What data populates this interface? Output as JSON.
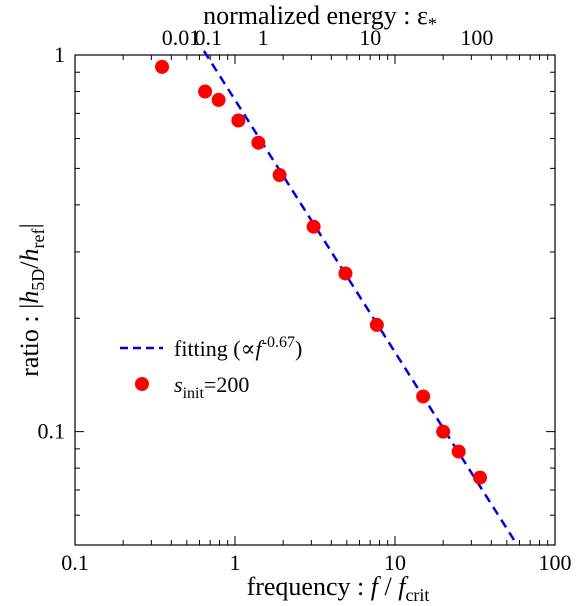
{
  "chart_data": {
    "type": "scatter",
    "x_axis": {
      "scale": "log",
      "range": [
        0.1,
        100
      ],
      "label_main": "frequency : ",
      "label_symbol": "f",
      "label_sep": " / ",
      "label_ref": "f",
      "label_ref_sub": "crit",
      "ticks": [
        {
          "value": 0.1,
          "label": "0.1"
        },
        {
          "value": 1,
          "label": "1"
        },
        {
          "value": 10,
          "label": "10"
        },
        {
          "value": 100,
          "label": "100"
        }
      ]
    },
    "top_axis": {
      "label": "normalized energy : ε",
      "label_sub": "*",
      "ticks": [
        {
          "f": 0.46,
          "label": "0.01"
        },
        {
          "f": 0.68,
          "label": "0.1"
        },
        {
          "f": 1.5,
          "label": "1"
        },
        {
          "f": 7.0,
          "label": "10"
        },
        {
          "f": 32.5,
          "label": "100"
        }
      ]
    },
    "y_axis": {
      "scale": "log",
      "range": [
        0.05,
        1
      ],
      "label_main": "ratio : |",
      "label_h1": "h",
      "label_h1_sub": "5D",
      "label_slash": "/",
      "label_h2": "h",
      "label_h2_sub": "ref",
      "label_end": "|",
      "ticks": [
        {
          "value": 0.1,
          "label": "0.1"
        },
        {
          "value": 1,
          "label": "1"
        }
      ]
    },
    "series": [
      {
        "name_main": "s",
        "name_sub": "init",
        "name_rest": "=200",
        "kind": "scatter",
        "color": "#ff0000",
        "x": [
          0.35,
          0.65,
          0.79,
          1.05,
          1.4,
          1.9,
          3.1,
          4.9,
          7.7,
          15.0,
          20.0,
          25.0,
          34.0
        ],
        "y": [
          0.93,
          0.8,
          0.76,
          0.67,
          0.585,
          0.48,
          0.35,
          0.263,
          0.192,
          0.124,
          0.1,
          0.0885,
          0.0755
        ]
      },
      {
        "name_main": "fitting (∝",
        "name_f": "f",
        "name_exp": "-0.67",
        "name_end": ")",
        "kind": "line",
        "style": "dashed",
        "color": "#0000e6",
        "exponent": -0.67,
        "coefficient": 0.76,
        "x_range": [
          0.64,
          58
        ]
      }
    ],
    "legend_position": "center-left",
    "grid": false
  }
}
